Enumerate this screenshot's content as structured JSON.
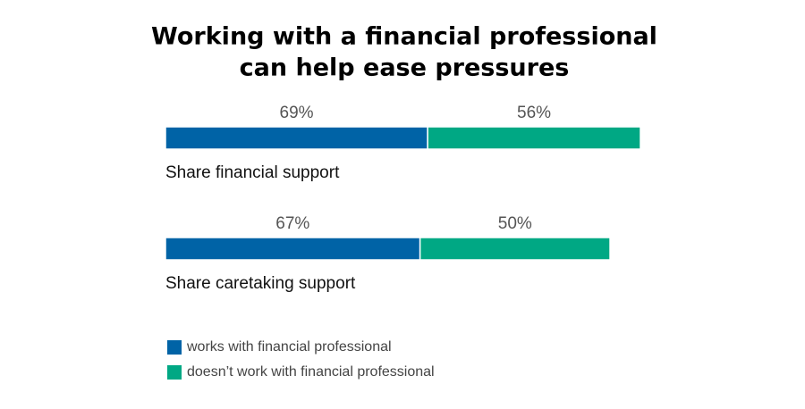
{
  "chart_data": {
    "type": "stacked-bar",
    "title": [
      "Working with a financial professional",
      "can help ease pressures"
    ],
    "categories": [
      "Share financial support",
      "Share caretaking support"
    ],
    "series": [
      {
        "name": "works with financial professional",
        "color": "#0063a6",
        "values": [
          69,
          67
        ],
        "value_labels": [
          "69%",
          "67%"
        ]
      },
      {
        "name": "doesn’t work with financial professional",
        "color": "#00a884",
        "values": [
          56,
          50
        ],
        "value_labels": [
          "56%",
          "50%"
        ]
      }
    ],
    "legend": "bottom-left"
  }
}
